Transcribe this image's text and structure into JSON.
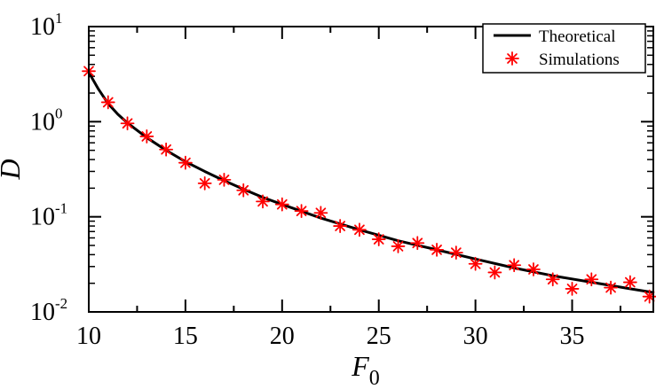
{
  "chart_data": {
    "type": "line",
    "title": "",
    "xlabel": "F",
    "xlabel_subscript": "0",
    "ylabel": "D",
    "xlim": [
      10,
      39.2
    ],
    "ylim": [
      0.01,
      10
    ],
    "yscale": "log",
    "grid": false,
    "legend_position": "top-right",
    "x_ticks": [
      10,
      15,
      20,
      25,
      30,
      35
    ],
    "y_ticks": [
      {
        "value": 0.01,
        "base": "10",
        "exp": "-2"
      },
      {
        "value": 0.1,
        "base": "10",
        "exp": "-1"
      },
      {
        "value": 1,
        "base": "10",
        "exp": "0"
      },
      {
        "value": 10,
        "base": "10",
        "exp": "1"
      }
    ],
    "series": [
      {
        "name": "Theoretical",
        "style": "line",
        "color": "#000000",
        "x": [
          10,
          10.5,
          11,
          11.5,
          12,
          13,
          14,
          15,
          16,
          17,
          18,
          19,
          20,
          22,
          24,
          26,
          28,
          30,
          32,
          34,
          36,
          38,
          39.2
        ],
        "y": [
          3.3,
          2.2,
          1.55,
          1.2,
          0.97,
          0.68,
          0.5,
          0.38,
          0.3,
          0.24,
          0.195,
          0.16,
          0.135,
          0.097,
          0.073,
          0.056,
          0.045,
          0.036,
          0.029,
          0.024,
          0.0205,
          0.0175,
          0.016
        ]
      },
      {
        "name": "Simulations",
        "style": "marker",
        "marker": "asterisk",
        "color": "#ff0000",
        "x": [
          10,
          11,
          12,
          13,
          14,
          15,
          16,
          17,
          18,
          19,
          20,
          21,
          22,
          23,
          24,
          25,
          26,
          27,
          28,
          29,
          30,
          31,
          32,
          33,
          34,
          35,
          36,
          37,
          38,
          39
        ],
        "y": [
          3.4,
          1.6,
          0.96,
          0.7,
          0.51,
          0.37,
          0.225,
          0.245,
          0.19,
          0.145,
          0.135,
          0.115,
          0.11,
          0.08,
          0.073,
          0.058,
          0.049,
          0.053,
          0.045,
          0.042,
          0.032,
          0.026,
          0.031,
          0.028,
          0.022,
          0.0175,
          0.022,
          0.018,
          0.0205,
          0.0145
        ]
      }
    ]
  }
}
